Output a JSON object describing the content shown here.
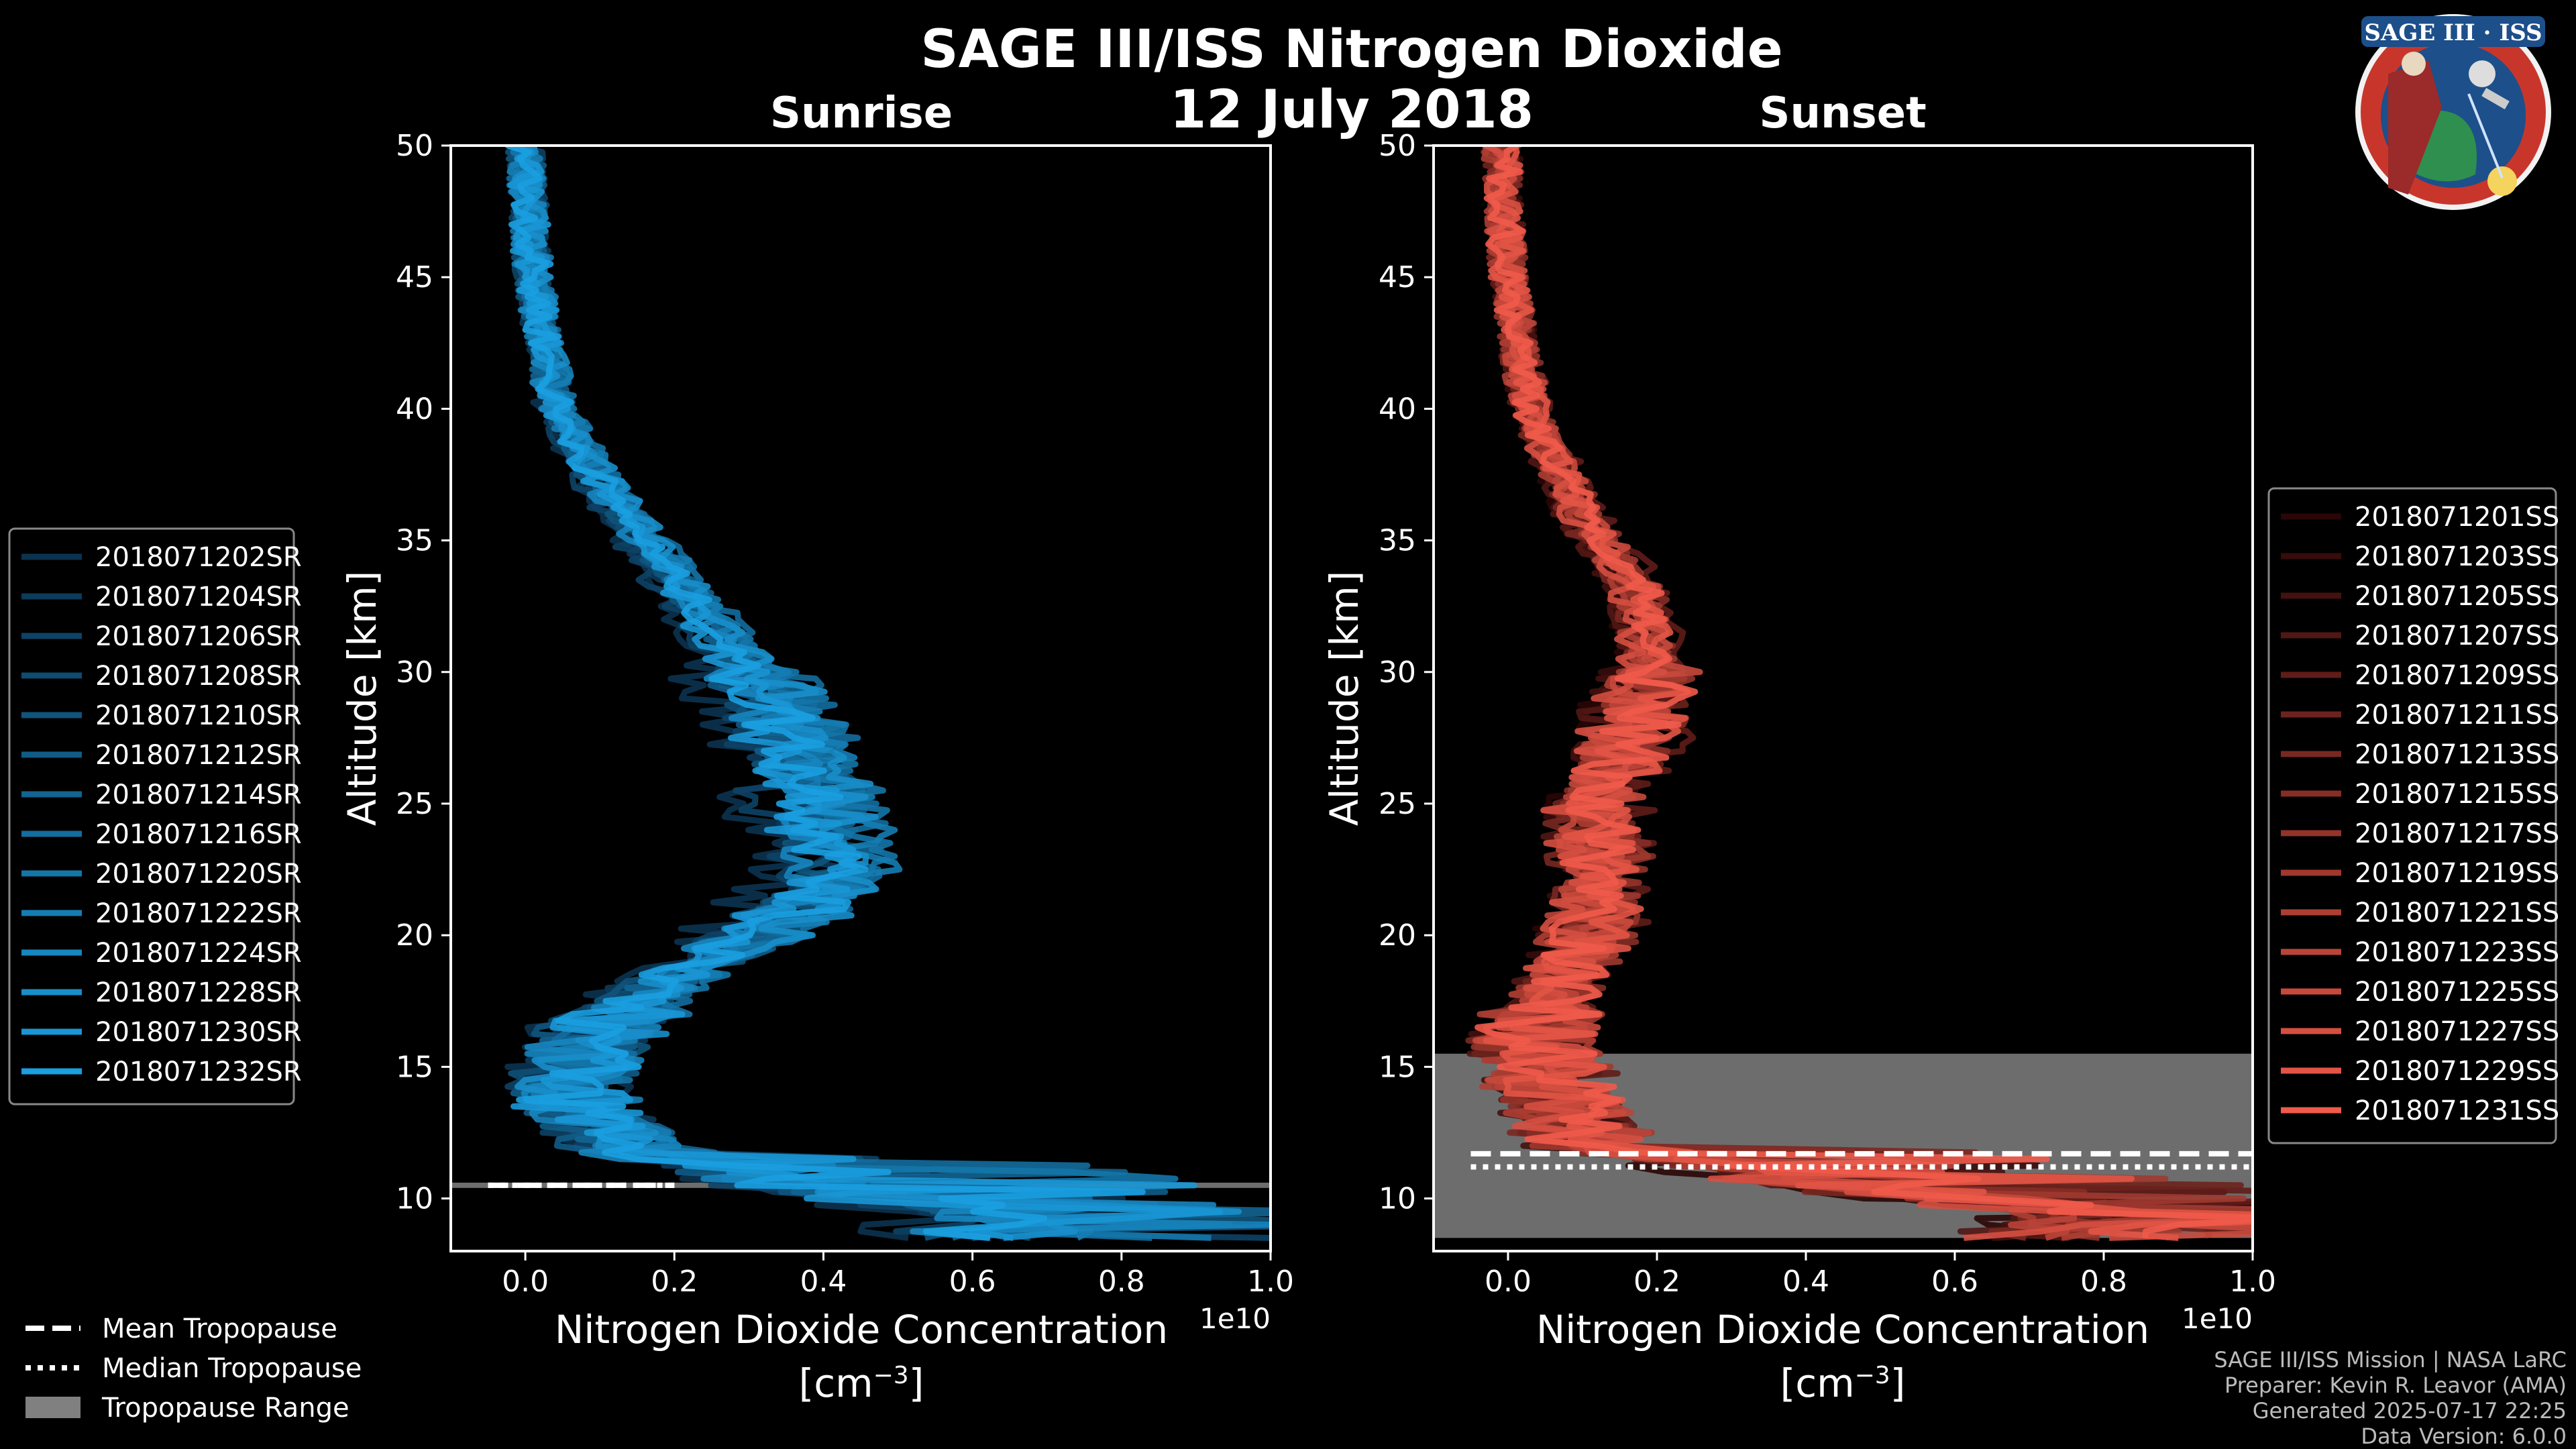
{
  "title": "SAGE III/ISS Nitrogen Dioxide",
  "date": "12 July 2018",
  "logo_text": "SAGE III · ISS",
  "footer": [
    "SAGE III/ISS Mission | NASA LaRC",
    "Preparer: Kevin R. Leavor (AMA)",
    "Generated 2025-07-17 22:25",
    "Data Version: 6.0.0"
  ],
  "tropopause_legend": [
    {
      "label": "Mean Tropopause",
      "style": "dashed"
    },
    {
      "label": "Median Tropopause",
      "style": "dotted"
    },
    {
      "label": "Tropopause Range",
      "style": "patch"
    }
  ],
  "chart_data": [
    {
      "type": "line",
      "title": "Sunrise",
      "xlabel": "Nitrogen Dioxide Concentration",
      "xunit": "[cm",
      "xunit_sup": "−3",
      "xunit_close": "]",
      "ylabel": "Altitude [km]",
      "offset_label": "1e10",
      "xlim": [
        -0.1,
        1.0
      ],
      "ylim": [
        8,
        50
      ],
      "xticks": [
        "0.0",
        "0.2",
        "0.4",
        "0.6",
        "0.8",
        "1.0"
      ],
      "yticks": [
        "10",
        "15",
        "20",
        "25",
        "30",
        "35",
        "40",
        "45",
        "50"
      ],
      "base_profile": {
        "alt": [
          50,
          45,
          40,
          37,
          34,
          31,
          28,
          25,
          23,
          21.5,
          20,
          18,
          16,
          14,
          12,
          10.5,
          9.5
        ],
        "conc": [
          0.0,
          0.01,
          0.04,
          0.1,
          0.18,
          0.26,
          0.33,
          0.38,
          0.4,
          0.38,
          0.3,
          0.17,
          0.08,
          0.06,
          0.12,
          0.35,
          0.6
        ]
      },
      "tropopause": {
        "mean": 10.5,
        "median": 10.5,
        "range": [
          10.4,
          10.6
        ],
        "mean_xmax": 0.2
      },
      "color_start": "#0b3350",
      "color_end": "#1a9ee0",
      "series": [
        {
          "name": "2018071202SR"
        },
        {
          "name": "2018071204SR"
        },
        {
          "name": "2018071206SR"
        },
        {
          "name": "2018071208SR"
        },
        {
          "name": "2018071210SR"
        },
        {
          "name": "2018071212SR"
        },
        {
          "name": "2018071214SR"
        },
        {
          "name": "2018071216SR"
        },
        {
          "name": "2018071220SR"
        },
        {
          "name": "2018071222SR"
        },
        {
          "name": "2018071224SR"
        },
        {
          "name": "2018071228SR"
        },
        {
          "name": "2018071230SR"
        },
        {
          "name": "2018071232SR"
        }
      ]
    },
    {
      "type": "line",
      "title": "Sunset",
      "xlabel": "Nitrogen Dioxide Concentration",
      "xunit": "[cm",
      "xunit_sup": "−3",
      "xunit_close": "]",
      "ylabel": "Altitude [km]",
      "offset_label": "1e10",
      "xlim": [
        -0.1,
        1.0
      ],
      "ylim": [
        8,
        50
      ],
      "xticks": [
        "0.0",
        "0.2",
        "0.4",
        "0.6",
        "0.8",
        "1.0"
      ],
      "yticks": [
        "10",
        "15",
        "20",
        "25",
        "30",
        "35",
        "40",
        "45",
        "50"
      ],
      "base_profile": {
        "alt": [
          50,
          45,
          40,
          36,
          33,
          30,
          27,
          25,
          22,
          20,
          18,
          16,
          14,
          12,
          10.5,
          9.5
        ],
        "conc": [
          -0.01,
          0.0,
          0.03,
          0.1,
          0.18,
          0.2,
          0.16,
          0.12,
          0.13,
          0.11,
          0.07,
          0.04,
          0.06,
          0.12,
          0.45,
          0.8
        ]
      },
      "tropopause": {
        "mean": 11.7,
        "median": 11.2,
        "range": [
          8.5,
          15.5
        ],
        "mean_xmax": 1.0
      },
      "color_start": "#2a0606",
      "color_end": "#ef5a4a",
      "series": [
        {
          "name": "2018071201SS"
        },
        {
          "name": "2018071203SS"
        },
        {
          "name": "2018071205SS"
        },
        {
          "name": "2018071207SS"
        },
        {
          "name": "2018071209SS"
        },
        {
          "name": "2018071211SS"
        },
        {
          "name": "2018071213SS"
        },
        {
          "name": "2018071215SS"
        },
        {
          "name": "2018071217SS"
        },
        {
          "name": "2018071219SS"
        },
        {
          "name": "2018071221SS"
        },
        {
          "name": "2018071223SS"
        },
        {
          "name": "2018071225SS"
        },
        {
          "name": "2018071227SS"
        },
        {
          "name": "2018071229SS"
        },
        {
          "name": "2018071231SS"
        }
      ]
    }
  ]
}
